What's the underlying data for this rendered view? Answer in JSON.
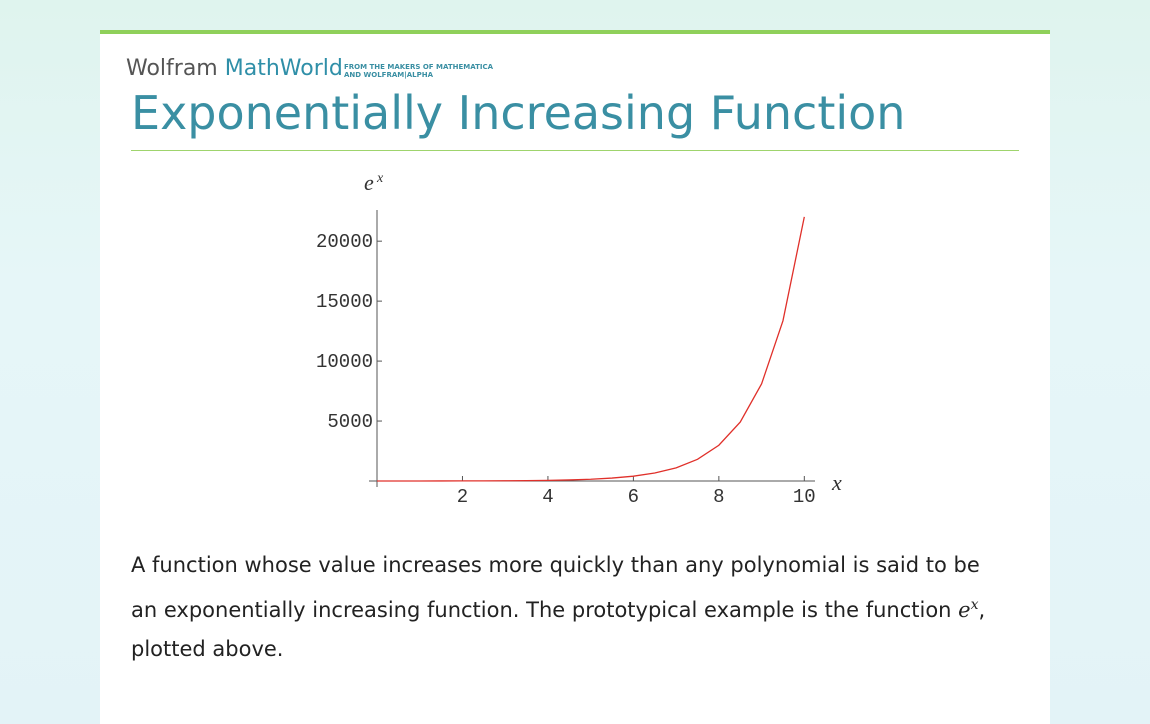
{
  "header": {
    "brand": "Wolfram",
    "product": "MathWorld",
    "tagline": [
      "FROM THE MAKERS OF MATHEMATICA",
      "AND WOLFRAM|ALPHA"
    ]
  },
  "title": "Exponentially Increasing Function",
  "chart_data": {
    "type": "line",
    "y_label": "e",
    "y_label_exponent": "x",
    "x_label": "x",
    "x": [
      0,
      0.5,
      1,
      1.5,
      2,
      2.5,
      3,
      3.5,
      4,
      4.5,
      5,
      5.5,
      6,
      6.5,
      7,
      7.5,
      8,
      8.5,
      9,
      9.5,
      10
    ],
    "values": [
      1,
      1.6,
      2.7,
      4.5,
      7.4,
      12,
      20,
      33,
      55,
      90,
      148,
      245,
      403,
      665,
      1097,
      1808,
      2981,
      4915,
      8103,
      13360,
      22026
    ],
    "color": "#e0302a",
    "xlim": [
      0,
      10.25
    ],
    "ylim": [
      0,
      22600
    ],
    "xticks": [
      2,
      4,
      6,
      8,
      10
    ],
    "yticks": [
      5000,
      10000,
      15000,
      20000
    ]
  },
  "article": {
    "paragraph": [
      "A function whose value increases more quickly than any polynomial is said to be an exponentially increasing function. The prototypical example is the function ",
      "e",
      "x",
      ", plotted above."
    ]
  }
}
